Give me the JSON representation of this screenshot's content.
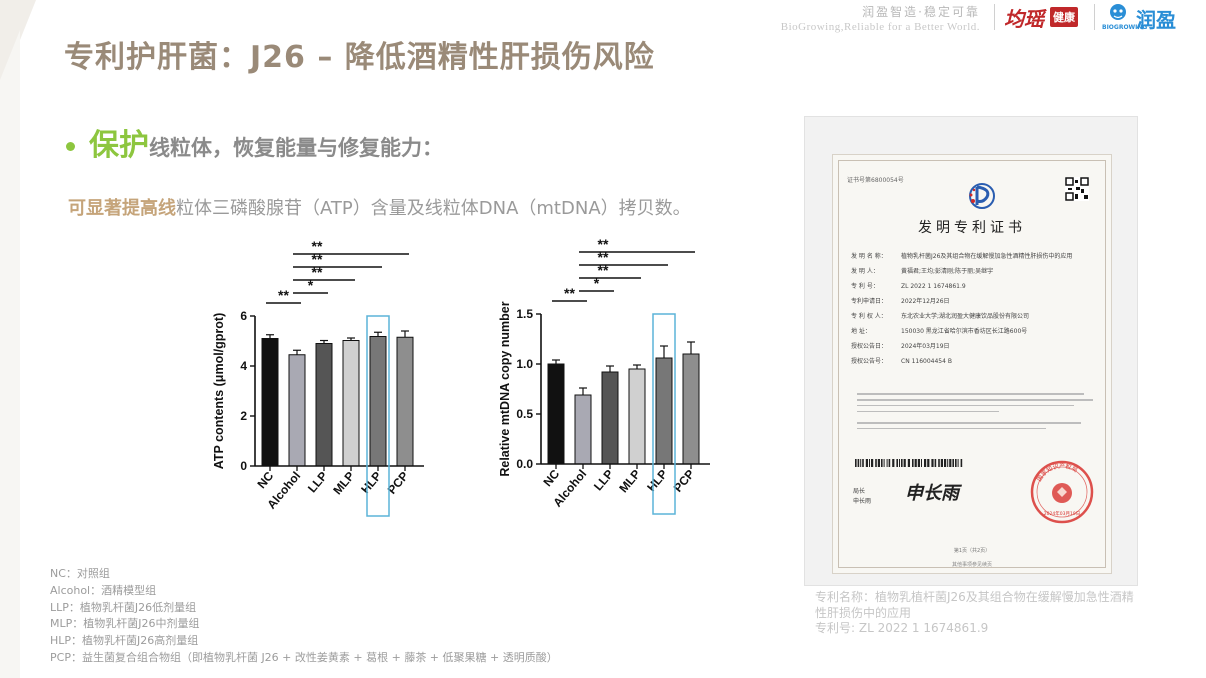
{
  "header": {
    "slogan_cn": "润盈智造·稳定可靠",
    "slogan_en": "BioGrowing,Reliable for a Better World.",
    "logo_junyao_text": "均瑶",
    "logo_junyao_badge": "健康",
    "logo_runying_text": "润盈",
    "logo_runying_sub": "BIOGROWING"
  },
  "title": "专利护肝菌：J26 – 降低酒精性肝损伤风险",
  "bullet": {
    "emphasis": "保护",
    "rest": "线粒体，恢复能量与修复能力："
  },
  "description": {
    "highlight": "可显著提高线",
    "rest": "粒体三磷酸腺苷（ATP）含量及线粒体DNA（mtDNA）拷贝数。"
  },
  "colors": {
    "title": "#9a8a78",
    "accent_green": "#8dc63f",
    "highlight_gold": "#c5a47a",
    "highlight_box": "#5bb4d8"
  },
  "chart_data": [
    {
      "type": "bar",
      "ylabel": "ATP contents (μmol/gprot)",
      "categories": [
        "NC",
        "Alcohol",
        "LLP",
        "MLP",
        "HLP",
        "PCP"
      ],
      "values": [
        5.1,
        4.45,
        4.9,
        5.02,
        5.18,
        5.15
      ],
      "errors": [
        0.15,
        0.18,
        0.12,
        0.1,
        0.17,
        0.25
      ],
      "ylim": [
        0,
        6
      ],
      "yticks": [
        "0",
        "2",
        "4",
        "6"
      ],
      "bar_colors": [
        "#111111",
        "#a9a9b3",
        "#555555",
        "#d0d0d0",
        "#777777",
        "#8e8e8e"
      ],
      "highlighted_category": "HLP",
      "significance": [
        {
          "from": "NC",
          "to": "Alcohol",
          "label": "**"
        },
        {
          "from": "Alcohol",
          "to": "LLP",
          "label": "*"
        },
        {
          "from": "Alcohol",
          "to": "MLP",
          "label": "**"
        },
        {
          "from": "Alcohol",
          "to": "HLP",
          "label": "**"
        },
        {
          "from": "Alcohol",
          "to": "PCP",
          "label": "**"
        }
      ]
    },
    {
      "type": "bar",
      "ylabel": "Relative mtDNA copy number",
      "categories": [
        "NC",
        "Alcohol",
        "LLP",
        "MLP",
        "HLP",
        "PCP"
      ],
      "values": [
        1.0,
        0.69,
        0.92,
        0.95,
        1.06,
        1.1
      ],
      "errors": [
        0.04,
        0.07,
        0.06,
        0.04,
        0.12,
        0.12
      ],
      "ylim": [
        0,
        1.5
      ],
      "yticks": [
        "0.0",
        "0.5",
        "1.0",
        "1.5"
      ],
      "bar_colors": [
        "#111111",
        "#a9a9b3",
        "#555555",
        "#d0d0d0",
        "#777777",
        "#8e8e8e"
      ],
      "highlighted_category": "HLP",
      "significance": [
        {
          "from": "NC",
          "to": "Alcohol",
          "label": "**"
        },
        {
          "from": "Alcohol",
          "to": "LLP",
          "label": "*"
        },
        {
          "from": "Alcohol",
          "to": "MLP",
          "label": "**"
        },
        {
          "from": "Alcohol",
          "to": "HLP",
          "label": "**"
        },
        {
          "from": "Alcohol",
          "to": "PCP",
          "label": "**"
        }
      ]
    }
  ],
  "legend": [
    "NC：对照组",
    "Alcohol：酒精模型组",
    "LLP：植物乳杆菌J26低剂量组",
    "MLP：植物乳杆菌J26中剂量组",
    "HLP：植物乳杆菌J26高剂量组",
    "PCP：益生菌复合组合物组（即植物乳杆菌 J26 + 改性姜黄素 + 葛根 + 藤茶 + 低聚果糖 + 透明质酸）"
  ],
  "certificate": {
    "number": "证书号第6800054号",
    "title": "发明专利证书",
    "fields": [
      {
        "label": "发 明 名 称：",
        "value": "植物乳杆菌J26及其组合物在缓解慢加急性酒精性肝损伤中的应用"
      },
      {
        "label": "发  明  人：",
        "value": "黄福君;王均;彭清刚;陈于丽;吴继宇"
      },
      {
        "label": "专  利  号：",
        "value": "ZL 2022 1 1674861.9"
      },
      {
        "label": "专利申请日：",
        "value": "2022年12月26日"
      },
      {
        "label": "专 利 权 人：",
        "value": "东北农业大学;湖北润盈大健康饮品股份有限公司"
      },
      {
        "label": "地     址：",
        "value": "150030 黑龙江省哈尔滨市香坊区长江路600号"
      },
      {
        "label": "授权公告日：",
        "value": "2024年03月19日"
      },
      {
        "label": "授权公告号：",
        "value": "CN 116004454 B"
      }
    ],
    "sign_label": "局长",
    "sign_name": "申长雨",
    "signature": "申长雨",
    "stamp_text": "国家知识产权局",
    "stamp_date": "2024年03月19日",
    "page": "第1页（共2页）",
    "footer": "其他事项参见续页"
  },
  "patent_caption": {
    "name": "专利名称：植物乳植杆菌J26及其组合物在缓解慢加急性酒精性肝损伤中的应用",
    "number": "专利号: ZL 2022 1 1674861.9"
  }
}
